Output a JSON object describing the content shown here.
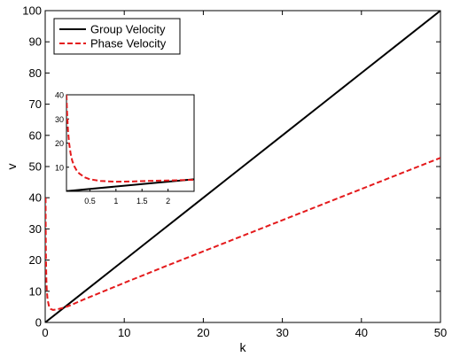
{
  "chart_data": {
    "type": "line",
    "xlabel": "k",
    "ylabel": "v",
    "xlim": [
      0,
      50
    ],
    "ylim": [
      0,
      100
    ],
    "xticks": [
      0,
      10,
      20,
      30,
      40,
      50
    ],
    "yticks": [
      0,
      10,
      20,
      30,
      40,
      50,
      60,
      70,
      80,
      90,
      100
    ],
    "grid": false,
    "legend_position": "top-left",
    "legend": [
      "Group Velocity",
      "Phase Velocity"
    ],
    "series": [
      {
        "name": "Group Velocity",
        "color": "#000000",
        "style": "solid",
        "x": [
          0.05,
          5,
          10,
          15,
          20,
          25,
          30,
          35,
          40,
          45,
          50
        ],
        "y": [
          0.1,
          10,
          20,
          30,
          40,
          50,
          60,
          70,
          80,
          90,
          100
        ]
      },
      {
        "name": "Phase Velocity",
        "color": "#e41a1c",
        "style": "dashed",
        "x": [
          0.05,
          0.06,
          0.08,
          0.1,
          0.15,
          0.2,
          0.3,
          0.5,
          0.7,
          1.0,
          1.5,
          2,
          3,
          5,
          10,
          15,
          20,
          25,
          30,
          35,
          40,
          45,
          50
        ],
        "y": [
          40.0,
          33.4,
          25.1,
          20.1,
          13.5,
          10.4,
          7.3,
          5.0,
          4.3,
          4.0,
          4.2,
          4.5,
          5.3,
          7.5,
          12.7,
          17.8,
          22.8,
          27.8,
          32.8,
          37.8,
          42.8,
          47.8,
          52.8
        ]
      }
    ],
    "inset": {
      "xlim": [
        0.05,
        2.5
      ],
      "ylim": [
        0,
        40
      ],
      "xticks": [
        0.5,
        1,
        1.5,
        2
      ],
      "xtick_labels": [
        "0.5",
        "1",
        "1.5",
        "2"
      ],
      "yticks": [
        10,
        20,
        30,
        40
      ],
      "series": [
        {
          "name": "Group Velocity",
          "color": "#000000",
          "style": "solid",
          "x": [
            0.05,
            2.5
          ],
          "y": [
            0.1,
            5.0
          ]
        },
        {
          "name": "Phase Velocity",
          "color": "#e41a1c",
          "style": "dashed",
          "x": [
            0.05,
            0.06,
            0.08,
            0.1,
            0.13,
            0.16,
            0.2,
            0.25,
            0.3,
            0.4,
            0.5,
            0.7,
            1.0,
            1.3,
            1.6,
            2.0,
            2.5
          ],
          "y": [
            40.0,
            33.4,
            25.1,
            20.1,
            15.6,
            12.7,
            10.4,
            8.5,
            7.3,
            5.8,
            5.0,
            4.3,
            4.0,
            4.1,
            4.3,
            4.5,
            4.8
          ]
        }
      ]
    }
  }
}
